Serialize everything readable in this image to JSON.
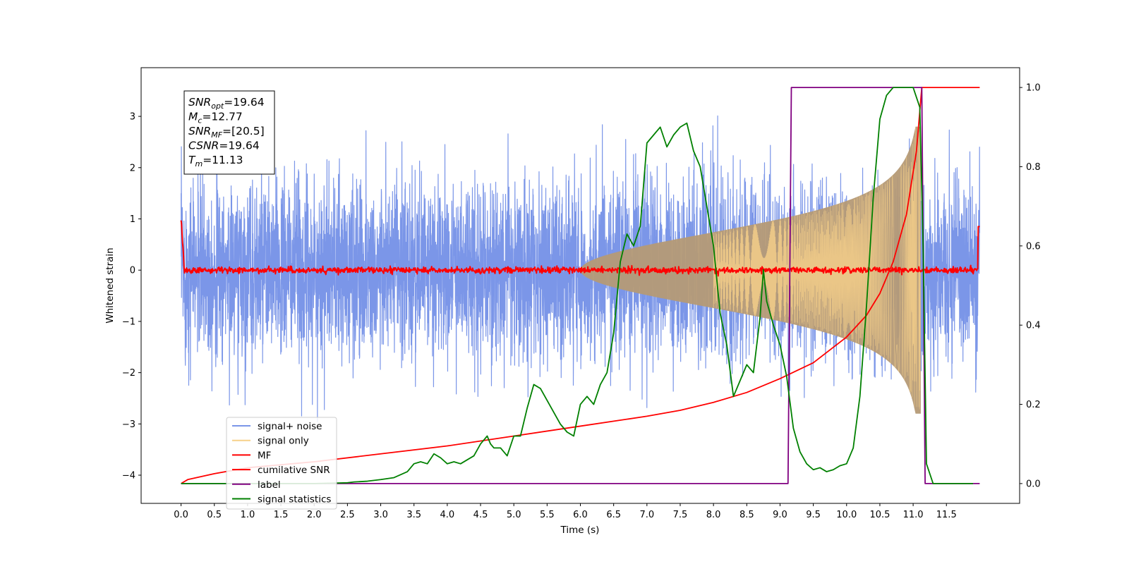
{
  "chart_data": {
    "type": "line",
    "title": "",
    "xlabel": "Time (s)",
    "ylabel": "Whitened strain",
    "y2label": "",
    "xlim": [
      -0.6,
      12.6
    ],
    "ylim": [
      -4.55,
      3.95
    ],
    "y2lim": [
      -0.05,
      1.05
    ],
    "xticks": [
      "0.0",
      "0.5",
      "1.0",
      "1.5",
      "2.0",
      "2.5",
      "3.0",
      "3.5",
      "4.0",
      "4.5",
      "5.0",
      "5.5",
      "6.0",
      "6.5",
      "7.0",
      "7.5",
      "8.0",
      "8.5",
      "9.0",
      "9.5",
      "10.0",
      "10.5",
      "11.0",
      "11.5"
    ],
    "yticks": [
      "3",
      "2",
      "1",
      "0",
      "−1",
      "−2",
      "−3",
      "−4"
    ],
    "y2ticks": [
      "1.0",
      "0.8",
      "0.6",
      "0.4",
      "0.2",
      "0.0"
    ],
    "legend_position": "lower-left",
    "annotation": {
      "lines": [
        {
          "sym": "SNR",
          "sub": "opt",
          "value": "=19.64"
        },
        {
          "sym": "M",
          "sub": "c",
          "value": "=12.77"
        },
        {
          "sym": "SNR",
          "sub": "MF",
          "value": "=[20.5]"
        },
        {
          "sym": "CSNR",
          "sub": "",
          "value": "=19.64"
        },
        {
          "sym": "T",
          "sub": "m",
          "value": "=11.13"
        }
      ]
    },
    "series": [
      {
        "name": "signal+ noise",
        "color": "#7b96e8",
        "axis": "left",
        "std": 0.85,
        "span": [
          0.0,
          12.0
        ]
      },
      {
        "name": "signal only",
        "color": "#f7d189",
        "axis": "left",
        "fill": "#b59a76",
        "t_merge": 11.13
      },
      {
        "name": "MF",
        "color": "#ff0000",
        "axis": "left",
        "std": 0.03,
        "edge_value": 1.0
      },
      {
        "name": "cumilative SNR",
        "color": "#ff0000",
        "axis": "right",
        "x": [
          0.0,
          0.1,
          0.5,
          1.0,
          2.0,
          3.0,
          4.0,
          5.0,
          6.0,
          7.0,
          7.5,
          8.0,
          8.5,
          9.0,
          9.5,
          10.0,
          10.3,
          10.5,
          10.7,
          10.9,
          11.05,
          11.13,
          12.0
        ],
        "y": [
          0.0,
          0.01,
          0.025,
          0.04,
          0.055,
          0.075,
          0.095,
          0.12,
          0.145,
          0.17,
          0.185,
          0.205,
          0.23,
          0.265,
          0.305,
          0.37,
          0.425,
          0.48,
          0.56,
          0.68,
          0.84,
          1.0,
          1.0
        ]
      },
      {
        "name": "label",
        "color": "#800080",
        "axis": "right",
        "x": [
          0.0,
          9.12,
          9.17,
          11.13,
          11.18,
          12.0
        ],
        "y": [
          0.0,
          0.0,
          1.0,
          1.0,
          0.0,
          0.0
        ]
      },
      {
        "name": "signal statistics",
        "color": "#008000",
        "axis": "right",
        "x": [
          0.0,
          0.5,
          1.0,
          1.5,
          2.0,
          2.5,
          2.6,
          2.8,
          3.0,
          3.2,
          3.4,
          3.5,
          3.6,
          3.7,
          3.8,
          3.9,
          4.0,
          4.1,
          4.2,
          4.3,
          4.4,
          4.5,
          4.6,
          4.65,
          4.7,
          4.8,
          4.9,
          5.0,
          5.1,
          5.2,
          5.3,
          5.4,
          5.5,
          5.6,
          5.7,
          5.8,
          5.9,
          6.0,
          6.1,
          6.2,
          6.3,
          6.4,
          6.5,
          6.6,
          6.7,
          6.8,
          6.9,
          7.0,
          7.1,
          7.2,
          7.3,
          7.4,
          7.5,
          7.6,
          7.7,
          7.8,
          7.9,
          8.0,
          8.1,
          8.2,
          8.3,
          8.4,
          8.5,
          8.6,
          8.7,
          8.75,
          8.8,
          8.9,
          9.0,
          9.1,
          9.2,
          9.3,
          9.4,
          9.5,
          9.6,
          9.7,
          9.8,
          9.9,
          10.0,
          10.1,
          10.2,
          10.3,
          10.4,
          10.5,
          10.6,
          10.7,
          10.8,
          10.9,
          11.0,
          11.1,
          11.15,
          11.2,
          11.3,
          11.5,
          11.9
        ],
        "y": [
          0.0,
          0.0,
          0.0,
          0.0,
          0.0,
          0.002,
          0.004,
          0.006,
          0.01,
          0.015,
          0.03,
          0.05,
          0.055,
          0.05,
          0.075,
          0.065,
          0.05,
          0.055,
          0.05,
          0.06,
          0.07,
          0.1,
          0.12,
          0.1,
          0.09,
          0.09,
          0.07,
          0.12,
          0.12,
          0.19,
          0.25,
          0.24,
          0.21,
          0.18,
          0.15,
          0.13,
          0.12,
          0.2,
          0.22,
          0.2,
          0.25,
          0.28,
          0.38,
          0.56,
          0.63,
          0.6,
          0.65,
          0.86,
          0.88,
          0.9,
          0.85,
          0.88,
          0.9,
          0.91,
          0.84,
          0.8,
          0.7,
          0.6,
          0.43,
          0.35,
          0.22,
          0.26,
          0.3,
          0.28,
          0.42,
          0.54,
          0.46,
          0.4,
          0.35,
          0.27,
          0.14,
          0.08,
          0.05,
          0.035,
          0.04,
          0.03,
          0.035,
          0.045,
          0.05,
          0.09,
          0.22,
          0.45,
          0.72,
          0.92,
          0.98,
          1.0,
          1.0,
          1.0,
          1.0,
          0.95,
          0.6,
          0.05,
          0.0,
          0.0,
          0.0
        ]
      }
    ]
  }
}
